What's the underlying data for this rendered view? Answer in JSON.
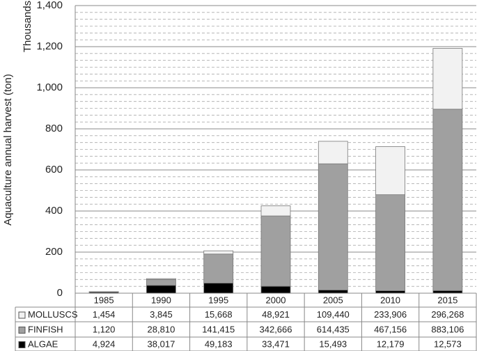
{
  "chart_data": {
    "type": "stacked_bar",
    "y_axis_label": "Aquaculture annual harvest (ton)",
    "y_unit_label": "Thousands",
    "categories": [
      "1985",
      "1990",
      "1995",
      "2000",
      "2005",
      "2010",
      "2015"
    ],
    "series": [
      {
        "name": "MOLLUSCS",
        "color": "#f2f2f2",
        "values": [
          1454,
          3845,
          15668,
          48921,
          109440,
          233906,
          296268
        ],
        "value_labels": [
          "1,454",
          "3,845",
          "15,668",
          "48,921",
          "109,440",
          "233,906",
          "296,268"
        ]
      },
      {
        "name": "FINFISH",
        "color": "#a0a0a0",
        "values": [
          1120,
          28810,
          141415,
          342666,
          614435,
          467156,
          883106
        ],
        "value_labels": [
          "1,120",
          "28,810",
          "141,415",
          "342,666",
          "614,435",
          "467,156",
          "883,106"
        ]
      },
      {
        "name": "ALGAE",
        "color": "#000000",
        "values": [
          4924,
          38017,
          49183,
          33471,
          15493,
          12179,
          12573
        ],
        "value_labels": [
          "4,924",
          "38,017",
          "49,183",
          "33,471",
          "15,493",
          "12,179",
          "12,573"
        ]
      }
    ],
    "ylim": [
      0,
      1400000
    ],
    "yticks": [
      0,
      {
        "value": 200000,
        "label": "200"
      },
      {
        "value": 400000,
        "label": "400"
      },
      {
        "value": 600000,
        "label": "600"
      },
      {
        "value": 800000,
        "label": "800"
      },
      {
        "value": 1000000,
        "label": "1,000"
      },
      {
        "value": 1200000,
        "label": "1,200"
      },
      {
        "value": 1400000,
        "label": "1,400"
      }
    ],
    "grid": true
  }
}
